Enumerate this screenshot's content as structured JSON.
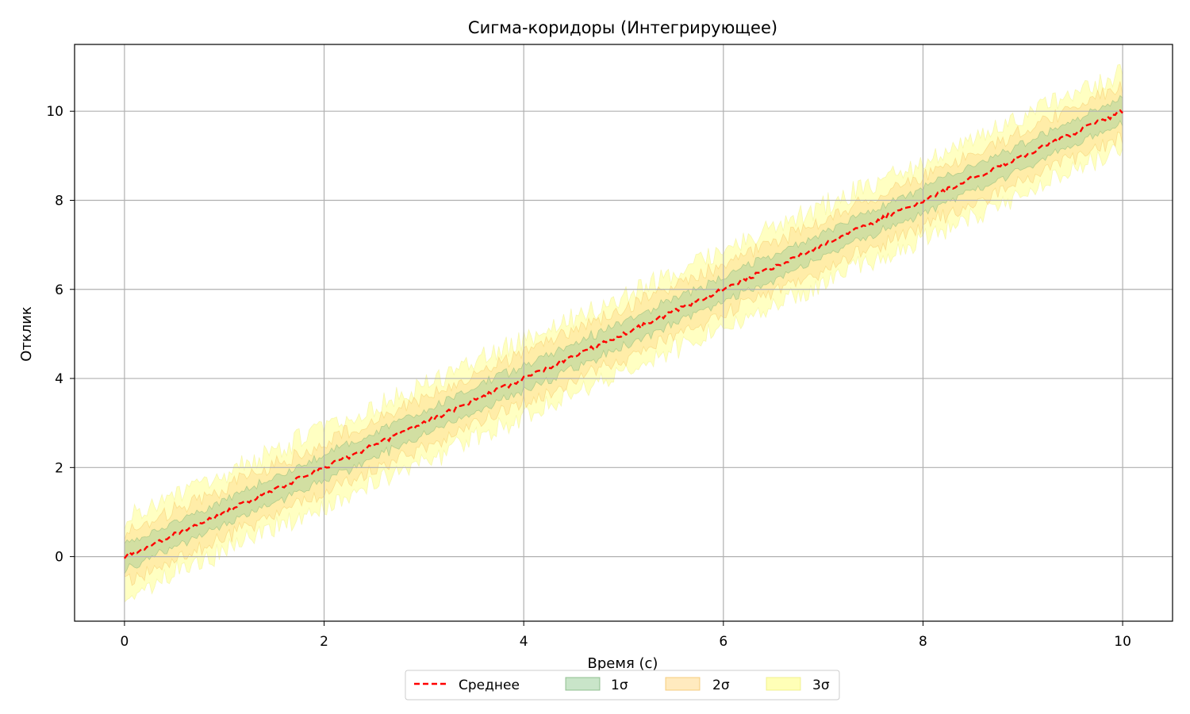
{
  "chart_data": {
    "type": "line",
    "title": "Сигма-коридоры (Интегрирующее)",
    "xlabel": "Время (с)",
    "ylabel": "Отклик",
    "xlim": [
      -0.5,
      10.5
    ],
    "ylim": [
      -1.45,
      11.5
    ],
    "xticks": [
      0,
      2,
      4,
      6,
      8,
      10
    ],
    "yticks": [
      0,
      2,
      4,
      6,
      8,
      10
    ],
    "grid": true,
    "legend_position": "bottom-center",
    "x_range": [
      0,
      10
    ],
    "mean_slope": 1.0,
    "series": [
      {
        "name": "Среднее",
        "kind": "line",
        "style": "dashed",
        "color": "#ff0000",
        "description": "mean ≈ t"
      },
      {
        "name": "1σ",
        "kind": "band",
        "sigma": 1,
        "half_width": 0.28,
        "color": "#9ccf9c"
      },
      {
        "name": "2σ",
        "kind": "band",
        "sigma": 2,
        "half_width": 0.56,
        "color": "#ffd88a"
      },
      {
        "name": "3σ",
        "kind": "band",
        "sigma": 3,
        "half_width": 0.86,
        "color": "#ffff99"
      }
    ],
    "colors": {
      "mean": "#ff0000",
      "band1": "#9ccf9c",
      "band1_edge": "#5aa05a",
      "band2": "#ffd88a",
      "band2_edge": "#f0b440",
      "band3": "#ffff99",
      "band3_edge": "#e8e860",
      "grid": "#b0b0b0"
    }
  }
}
